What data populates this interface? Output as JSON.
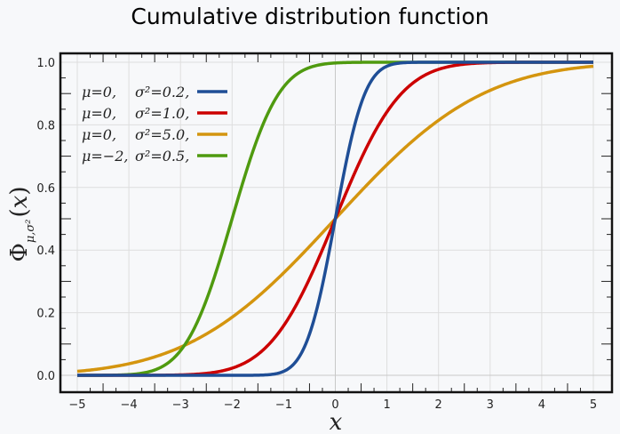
{
  "chart_data": {
    "type": "line",
    "title": "Cumulative distribution function",
    "xlabel": "x",
    "ylabel": "Φμ,σ²(x)",
    "ylabel_parts": {
      "phi": "Φ",
      "sub": "μ,σ²",
      "open": "(",
      "var": "x",
      "close": ")"
    },
    "xlim": [
      -5,
      5
    ],
    "ylim": [
      0,
      1
    ],
    "grid": true,
    "legend_position": "top-left",
    "x_ticks": [
      -5,
      -4,
      -3,
      -2,
      -1,
      0,
      1,
      2,
      3,
      4,
      5
    ],
    "x_tick_labels": [
      "−5",
      "−4",
      "−3",
      "−2",
      "−1",
      "0",
      "1",
      "2",
      "3",
      "4",
      "5"
    ],
    "y_ticks": [
      0,
      0.2,
      0.4,
      0.6,
      0.8,
      1.0
    ],
    "y_tick_labels": [
      "0.0",
      "0.2",
      "0.4",
      "0.6",
      "0.8",
      "1.0"
    ],
    "series": [
      {
        "name": "μ=0, σ²=0.2,",
        "mu_label": "μ=0,",
        "sigma_label": "σ²=0.2,",
        "mu": 0,
        "variance": 0.2,
        "color": "#1f4e96"
      },
      {
        "name": "μ=0, σ²=1.0,",
        "mu_label": "μ=0,",
        "sigma_label": "σ²=1.0,",
        "mu": 0,
        "variance": 1.0,
        "color": "#cc0000"
      },
      {
        "name": "μ=0, σ²=5.0,",
        "mu_label": "μ=0,",
        "sigma_label": "σ²=5.0,",
        "mu": 0,
        "variance": 5.0,
        "color": "#d4950f"
      },
      {
        "name": "μ=−2, σ²=0.5,",
        "mu_label": "μ=−2,",
        "sigma_label": "σ²=0.5,",
        "mu": -2,
        "variance": 0.5,
        "color": "#4f9a0f"
      }
    ]
  }
}
